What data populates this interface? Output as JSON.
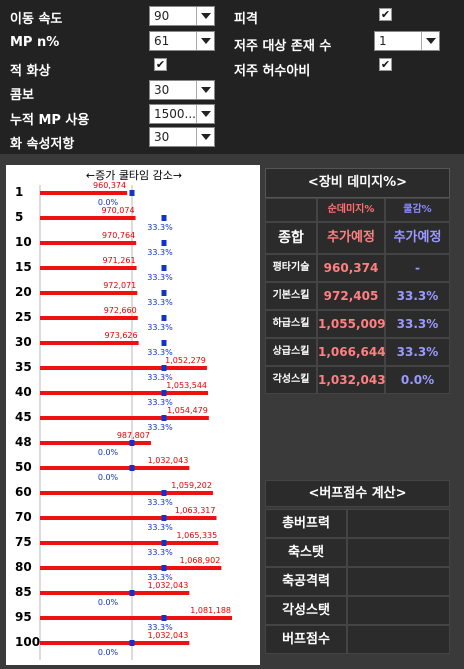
{
  "settings": {
    "move_speed": {
      "label": "이동 속도",
      "value": "90"
    },
    "mp_n": {
      "label": "MP n%",
      "value": "61"
    },
    "fire_screen": {
      "label": "적 화상",
      "checked": true
    },
    "combo": {
      "label": "콤보",
      "value": "30"
    },
    "cumulative_mp": {
      "label": "누적 MP 사용",
      "value": "1500..."
    },
    "fire_resist": {
      "label": "화 속성저항",
      "value": "30"
    },
    "hit": {
      "label": "피격",
      "checked": true
    },
    "curse_target": {
      "label": "저주 대상 존재 수",
      "value": "1"
    },
    "curse_scarecrow": {
      "label": "저주 허수아비",
      "checked": true
    }
  },
  "chart_data": {
    "type": "bar",
    "title": "←증가  쿨타임  감소→",
    "categories": [
      "1",
      "5",
      "10",
      "15",
      "20",
      "25",
      "30",
      "35",
      "40",
      "45",
      "48",
      "50",
      "60",
      "70",
      "75",
      "80",
      "85",
      "95",
      "100"
    ],
    "damage_values": [
      960374,
      970074,
      970764,
      971261,
      972071,
      972660,
      973626,
      1052279,
      1053544,
      1054479,
      987807,
      1032043,
      1059202,
      1063317,
      1065335,
      1068902,
      1032043,
      1081188,
      1032043
    ],
    "damage_labels": [
      "960,374",
      "970,074",
      "970,764",
      "971,261",
      "972,071",
      "972,660",
      "973,626",
      "1,052,279",
      "1,053,544",
      "1,054,479",
      "987,807",
      "1,032,043",
      "1,059,202",
      "1,063,317",
      "1,065,335",
      "1,068,902",
      "1,032,043",
      "1,081,188",
      "1,032,043"
    ],
    "cooldown_values": [
      0.0,
      33.3,
      33.3,
      33.3,
      33.3,
      33.3,
      33.3,
      33.3,
      33.3,
      33.3,
      0.0,
      0.0,
      33.3,
      33.3,
      33.3,
      33.3,
      0.0,
      33.3,
      0.0
    ],
    "cooldown_labels": [
      "0.0%",
      "33.3%",
      "33.3%",
      "33.3%",
      "33.3%",
      "33.3%",
      "33.3%",
      "33.3%",
      "33.3%",
      "33.3%",
      "0.0%",
      "0.0%",
      "33.3%",
      "33.3%",
      "33.3%",
      "33.3%",
      "0.0%",
      "33.3%",
      "0.0%"
    ],
    "bar_color": "#ee1111",
    "marker_color": "#1133cc"
  },
  "damage_panel": {
    "title": "<장비 데미지%>",
    "col_headers": [
      "순데미지%",
      "쿨감%"
    ],
    "row_total": {
      "label": "종합",
      "damage": "추가예정",
      "cooldown": "추가예정"
    },
    "rows": [
      {
        "label": "평타기술",
        "damage": "960,374",
        "cooldown": "-"
      },
      {
        "label": "기본스킬",
        "damage": "972,405",
        "cooldown": "33.3%"
      },
      {
        "label": "하급스킬",
        "damage": "1,055,009",
        "cooldown": "33.3%"
      },
      {
        "label": "상급스킬",
        "damage": "1,066,644",
        "cooldown": "33.3%"
      },
      {
        "label": "각성스킬",
        "damage": "1,032,043",
        "cooldown": "0.0%"
      }
    ],
    "colors": {
      "damage": "#ff8080",
      "cooldown": "#9999ff",
      "header_damage": "#ff7070",
      "header_cooldown": "#8888ff"
    }
  },
  "buff_panel": {
    "title": "<버프점수 계산>",
    "rows": [
      {
        "label": "총버프력",
        "value": ""
      },
      {
        "label": "축스탯",
        "value": ""
      },
      {
        "label": "축공격력",
        "value": ""
      },
      {
        "label": "각성스탯",
        "value": ""
      },
      {
        "label": "버프점수",
        "value": ""
      }
    ]
  }
}
